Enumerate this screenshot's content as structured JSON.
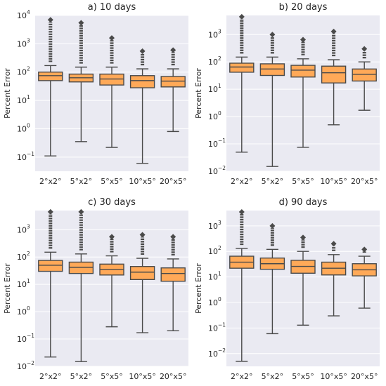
{
  "colors": {
    "panel_bg": "#eaeaf2",
    "grid": "#ffffff",
    "box_fill": "#ffa958",
    "line": "#4a4a4a"
  },
  "chart_data": [
    {
      "type": "box",
      "title": "a) 10 days",
      "ylabel": "Percent Error",
      "yscale": "log",
      "ylim_exp": [
        -1.5,
        4
      ],
      "ytick_exps": [
        -1,
        0,
        1,
        2,
        3,
        4
      ],
      "categories": [
        "2°x2°",
        "5°x2°",
        "5°x5°",
        "10°x5°",
        "20°x5°"
      ],
      "boxes": [
        {
          "whislo": 0.11,
          "q1": 50,
          "med": 75,
          "q3": 100,
          "whishi": 170,
          "fliers_max": 7000
        },
        {
          "whislo": 0.35,
          "q1": 45,
          "med": 63,
          "q3": 85,
          "whishi": 150,
          "fliers_max": 5500
        },
        {
          "whislo": 0.22,
          "q1": 35,
          "med": 57,
          "q3": 85,
          "whishi": 150,
          "fliers_max": 1600
        },
        {
          "whislo": 0.06,
          "q1": 28,
          "med": 50,
          "q3": 75,
          "whishi": 130,
          "fliers_max": 550
        },
        {
          "whislo": 0.8,
          "q1": 30,
          "med": 48,
          "q3": 70,
          "whishi": 130,
          "fliers_max": 600
        }
      ]
    },
    {
      "type": "box",
      "title": "b) 20 days",
      "ylabel": "Percent Error",
      "yscale": "log",
      "ylim_exp": [
        -2,
        3.7
      ],
      "ytick_exps": [
        -2,
        -1,
        0,
        1,
        2,
        3
      ],
      "categories": [
        "2°x2°",
        "5°x2°",
        "5°x5°",
        "10°x5°",
        "20°x5°"
      ],
      "boxes": [
        {
          "whislo": 0.05,
          "q1": 42,
          "med": 65,
          "q3": 90,
          "whishi": 150,
          "fliers_max": 4500
        },
        {
          "whislo": 0.015,
          "q1": 32,
          "med": 55,
          "q3": 85,
          "whishi": 150,
          "fliers_max": 1000
        },
        {
          "whislo": 0.075,
          "q1": 28,
          "med": 50,
          "q3": 75,
          "whishi": 130,
          "fliers_max": 650
        },
        {
          "whislo": 0.5,
          "q1": 17,
          "med": 40,
          "q3": 70,
          "whishi": 120,
          "fliers_max": 1300
        },
        {
          "whislo": 1.7,
          "q1": 20,
          "med": 35,
          "q3": 55,
          "whishi": 100,
          "fliers_max": 300
        }
      ]
    },
    {
      "type": "box",
      "title": "c) 30 days",
      "ylabel": "Percent Error",
      "yscale": "log",
      "ylim_exp": [
        -2,
        3.7
      ],
      "ytick_exps": [
        -2,
        -1,
        0,
        1,
        2,
        3
      ],
      "categories": [
        "2°x2°",
        "5°x2°",
        "5°x5°",
        "10°x5°",
        "20°x5°"
      ],
      "boxes": [
        {
          "whislo": 0.022,
          "q1": 30,
          "med": 50,
          "q3": 75,
          "whishi": 150,
          "fliers_max": 4500
        },
        {
          "whislo": 0.015,
          "q1": 25,
          "med": 42,
          "q3": 65,
          "whishi": 130,
          "fliers_max": 4500
        },
        {
          "whislo": 0.28,
          "q1": 22,
          "med": 35,
          "q3": 55,
          "whishi": 110,
          "fliers_max": 550
        },
        {
          "whislo": 0.17,
          "q1": 15,
          "med": 28,
          "q3": 45,
          "whishi": 90,
          "fliers_max": 650
        },
        {
          "whislo": 0.2,
          "q1": 13,
          "med": 25,
          "q3": 40,
          "whishi": 85,
          "fliers_max": 550
        }
      ]
    },
    {
      "type": "box",
      "title": "d) 90 days",
      "ylabel": "Percent Error",
      "yscale": "log",
      "ylim_exp": [
        -2.5,
        3.6
      ],
      "ytick_exps": [
        -2,
        -1,
        0,
        1,
        2,
        3
      ],
      "categories": [
        "2°x2°",
        "5°x2°",
        "5°x5°",
        "10°x5°",
        "20°x5°"
      ],
      "boxes": [
        {
          "whislo": 0.005,
          "q1": 22,
          "med": 38,
          "q3": 65,
          "whishi": 130,
          "fliers_max": 3500
        },
        {
          "whislo": 0.06,
          "q1": 20,
          "med": 33,
          "q3": 55,
          "whishi": 120,
          "fliers_max": 1000
        },
        {
          "whislo": 0.13,
          "q1": 14,
          "med": 26,
          "q3": 45,
          "whishi": 100,
          "fliers_max": 350
        },
        {
          "whislo": 0.3,
          "q1": 12,
          "med": 22,
          "q3": 38,
          "whishi": 75,
          "fliers_max": 200
        },
        {
          "whislo": 0.6,
          "q1": 11,
          "med": 19,
          "q3": 33,
          "whishi": 65,
          "fliers_max": 120
        }
      ]
    }
  ]
}
